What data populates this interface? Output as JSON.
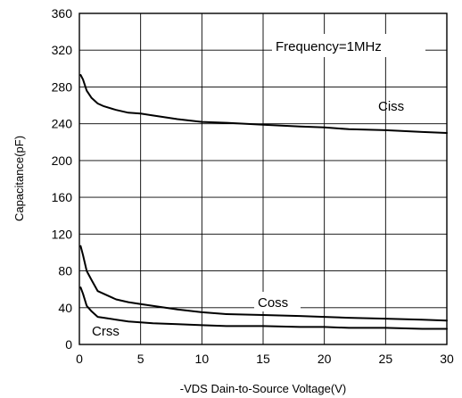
{
  "chart_data": {
    "type": "line",
    "xlabel": "-VDS Dain-to-Source Voltage(V)",
    "ylabel": "Capacitance(pF)",
    "xlim": [
      0,
      30
    ],
    "ylim": [
      0,
      360
    ],
    "x_ticks": [
      0,
      5,
      10,
      15,
      20,
      25,
      30
    ],
    "y_ticks": [
      0,
      40,
      80,
      120,
      160,
      200,
      240,
      280,
      320,
      360
    ],
    "grid": true,
    "annotation": "Frequency=1MHz",
    "series": [
      {
        "name": "Ciss",
        "x": [
          0.1,
          0.3,
          0.6,
          1,
          1.5,
          2,
          3,
          4,
          5,
          6,
          8,
          10,
          12,
          15,
          18,
          20,
          22,
          25,
          28,
          30
        ],
        "y": [
          293,
          288,
          276,
          268,
          262,
          259,
          255,
          252,
          251,
          249,
          245,
          242,
          241,
          239,
          237,
          236,
          234,
          233,
          231,
          230
        ]
      },
      {
        "name": "Coss",
        "x": [
          0.1,
          0.3,
          0.6,
          1,
          1.5,
          2,
          3,
          4,
          5,
          6,
          8,
          10,
          12,
          15,
          18,
          20,
          22,
          25,
          28,
          30
        ],
        "y": [
          107,
          97,
          80,
          70,
          58,
          55,
          49,
          46,
          44,
          42,
          38,
          35,
          33,
          32,
          31,
          30,
          29,
          28,
          27,
          26
        ]
      },
      {
        "name": "Crss",
        "x": [
          0.1,
          0.3,
          0.6,
          1,
          1.5,
          2,
          3,
          4,
          5,
          6,
          8,
          10,
          12,
          15,
          18,
          20,
          22,
          25,
          28,
          30
        ],
        "y": [
          62,
          55,
          42,
          36,
          30,
          29,
          27,
          25,
          24,
          23,
          22,
          21,
          20,
          20,
          19,
          19,
          18,
          18,
          17,
          17
        ]
      }
    ]
  }
}
